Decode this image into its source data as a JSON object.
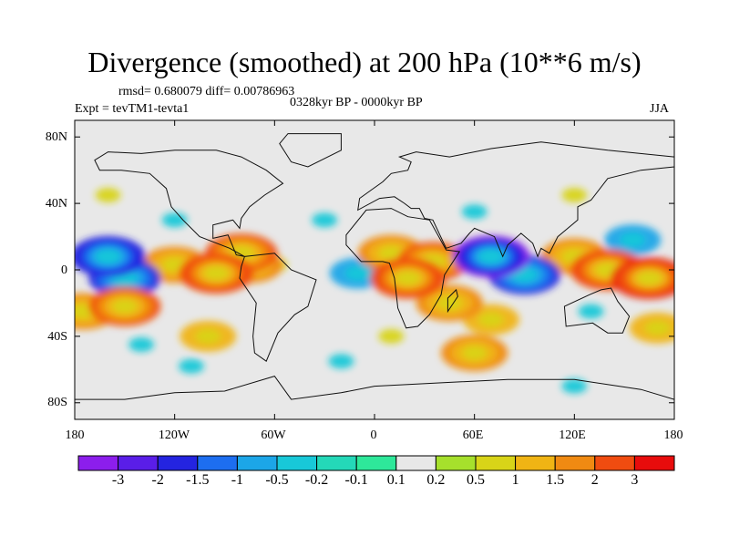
{
  "title": "Divergence (smoothed) at 200 hPa (10**6 m/s)",
  "stats": "rmsd= 0.680079  diff= 0.00786963",
  "experiment": "Expt = tevTM1-tevta1",
  "period": "0328kyr BP - 0000kyr BP",
  "season": "JJA",
  "y_ticks": [
    "80N",
    "40N",
    "0",
    "40S",
    "80S"
  ],
  "x_ticks": [
    "180",
    "120W",
    "60W",
    "0",
    "60E",
    "120E",
    "180"
  ],
  "colorbar": {
    "labels": [
      "-3",
      "-2",
      "-1.5",
      "-1",
      "-0.5",
      "-0.2",
      "-0.1",
      "0.1",
      "0.2",
      "0.5",
      "1",
      "1.5",
      "2",
      "3"
    ],
    "colors": [
      "#8c1eec",
      "#2424e0",
      "#1d6ef0",
      "#1ca6e8",
      "#18c8d8",
      "#24d8b8",
      "#2ee89a",
      "#e8e8e8",
      "#a6e02c",
      "#d8d418",
      "#f0b414",
      "#f08a12",
      "#f04c10",
      "#e80c0c"
    ]
  },
  "map_fields": {
    "units": "10**6 m/s",
    "features_deg": [
      {
        "lon": -160,
        "lat": 8,
        "value": -2.5
      },
      {
        "lon": -150,
        "lat": -5,
        "value": -2
      },
      {
        "lon": -175,
        "lat": -25,
        "value": 1.5
      },
      {
        "lon": -150,
        "lat": -22,
        "value": 2
      },
      {
        "lon": -120,
        "lat": 3,
        "value": 1.5
      },
      {
        "lon": -95,
        "lat": -2,
        "value": 2.5
      },
      {
        "lon": -80,
        "lat": 10,
        "value": 2
      },
      {
        "lon": -75,
        "lat": 3,
        "value": 1.5
      },
      {
        "lon": -60,
        "lat": 3,
        "value": 0.5
      },
      {
        "lon": -10,
        "lat": -2,
        "value": -1
      },
      {
        "lon": 10,
        "lat": 10,
        "value": 1.5
      },
      {
        "lon": 20,
        "lat": -5,
        "value": 2.5
      },
      {
        "lon": 35,
        "lat": 5,
        "value": 2
      },
      {
        "lon": 70,
        "lat": 8,
        "value": -3
      },
      {
        "lon": 90,
        "lat": -3,
        "value": -2
      },
      {
        "lon": 45,
        "lat": -20,
        "value": 1.5
      },
      {
        "lon": 70,
        "lat": -30,
        "value": 1
      },
      {
        "lon": 60,
        "lat": -50,
        "value": 1.5
      },
      {
        "lon": 120,
        "lat": 8,
        "value": 1.5
      },
      {
        "lon": 140,
        "lat": 0,
        "value": 2.5
      },
      {
        "lon": 165,
        "lat": -5,
        "value": 3
      },
      {
        "lon": 155,
        "lat": 18,
        "value": -1
      },
      {
        "lon": 130,
        "lat": -25,
        "value": -0.5
      },
      {
        "lon": 170,
        "lat": -35,
        "value": 1
      },
      {
        "lon": -120,
        "lat": 30,
        "value": -0.5
      },
      {
        "lon": -30,
        "lat": 30,
        "value": -0.5
      },
      {
        "lon": -100,
        "lat": -40,
        "value": 1
      },
      {
        "lon": -140,
        "lat": -45,
        "value": -0.5
      },
      {
        "lon": 10,
        "lat": -40,
        "value": 0.5
      },
      {
        "lon": 60,
        "lat": 35,
        "value": -0.5
      },
      {
        "lon": 120,
        "lat": 45,
        "value": 0.5
      },
      {
        "lon": -160,
        "lat": 45,
        "value": 0.5
      },
      {
        "lon": -20,
        "lat": -55,
        "value": -0.5
      },
      {
        "lon": -110,
        "lat": -58,
        "value": -0.5
      },
      {
        "lon": 120,
        "lat": -70,
        "value": -0.5
      }
    ],
    "continents_deg": [
      {
        "name": "north-america",
        "coords": [
          [
            -168,
            66
          ],
          [
            -160,
            71
          ],
          [
            -140,
            70
          ],
          [
            -120,
            72
          ],
          [
            -95,
            72
          ],
          [
            -80,
            68
          ],
          [
            -65,
            60
          ],
          [
            -55,
            52
          ],
          [
            -66,
            45
          ],
          [
            -75,
            38
          ],
          [
            -80,
            31
          ],
          [
            -81,
            25
          ],
          [
            -85,
            30
          ],
          [
            -97,
            27
          ],
          [
            -97,
            19
          ],
          [
            -88,
            21
          ],
          [
            -83,
            9
          ],
          [
            -78,
            8
          ],
          [
            -87,
            13
          ],
          [
            -105,
            20
          ],
          [
            -115,
            30
          ],
          [
            -122,
            38
          ],
          [
            -125,
            49
          ],
          [
            -135,
            58
          ],
          [
            -152,
            60
          ],
          [
            -165,
            60
          ]
        ]
      },
      {
        "name": "greenland",
        "coords": [
          [
            -52,
            82
          ],
          [
            -20,
            82
          ],
          [
            -20,
            72
          ],
          [
            -40,
            62
          ],
          [
            -50,
            65
          ],
          [
            -57,
            76
          ]
        ]
      },
      {
        "name": "south-america",
        "coords": [
          [
            -78,
            8
          ],
          [
            -60,
            10
          ],
          [
            -50,
            0
          ],
          [
            -35,
            -6
          ],
          [
            -40,
            -22
          ],
          [
            -48,
            -27
          ],
          [
            -58,
            -38
          ],
          [
            -65,
            -55
          ],
          [
            -72,
            -50
          ],
          [
            -73,
            -40
          ],
          [
            -71,
            -20
          ],
          [
            -81,
            -5
          ],
          [
            -80,
            2
          ]
        ]
      },
      {
        "name": "eurasia",
        "coords": [
          [
            -10,
            36
          ],
          [
            -9,
            43
          ],
          [
            -2,
            48
          ],
          [
            5,
            53
          ],
          [
            10,
            58
          ],
          [
            20,
            60
          ],
          [
            22,
            65
          ],
          [
            15,
            68
          ],
          [
            25,
            71
          ],
          [
            45,
            68
          ],
          [
            70,
            73
          ],
          [
            100,
            77
          ],
          [
            140,
            72
          ],
          [
            180,
            68
          ],
          [
            180,
            62
          ],
          [
            160,
            60
          ],
          [
            140,
            55
          ],
          [
            130,
            42
          ],
          [
            122,
            38
          ],
          [
            122,
            30
          ],
          [
            110,
            20
          ],
          [
            105,
            10
          ],
          [
            100,
            13
          ],
          [
            98,
            8
          ],
          [
            95,
            16
          ],
          [
            88,
            22
          ],
          [
            80,
            15
          ],
          [
            77,
            8
          ],
          [
            72,
            20
          ],
          [
            60,
            25
          ],
          [
            57,
            22
          ],
          [
            52,
            16
          ],
          [
            43,
            13
          ],
          [
            35,
            30
          ],
          [
            30,
            31
          ],
          [
            27,
            37
          ],
          [
            22,
            37
          ],
          [
            18,
            40
          ],
          [
            12,
            44
          ],
          [
            3,
            43
          ]
        ]
      },
      {
        "name": "africa",
        "coords": [
          [
            -17,
            21
          ],
          [
            -17,
            15
          ],
          [
            -8,
            5
          ],
          [
            5,
            5
          ],
          [
            9,
            4
          ],
          [
            12,
            -5
          ],
          [
            14,
            -23
          ],
          [
            19,
            -35
          ],
          [
            26,
            -34
          ],
          [
            33,
            -27
          ],
          [
            40,
            -15
          ],
          [
            42,
            -3
          ],
          [
            51,
            11
          ],
          [
            43,
            12
          ],
          [
            33,
            30
          ],
          [
            20,
            32
          ],
          [
            10,
            37
          ],
          [
            -5,
            36
          ]
        ]
      },
      {
        "name": "australia",
        "coords": [
          [
            114,
            -22
          ],
          [
            129,
            -15
          ],
          [
            136,
            -12
          ],
          [
            142,
            -11
          ],
          [
            146,
            -19
          ],
          [
            153,
            -28
          ],
          [
            149,
            -38
          ],
          [
            140,
            -38
          ],
          [
            131,
            -32
          ],
          [
            115,
            -34
          ]
        ]
      },
      {
        "name": "antarctica",
        "coords": [
          [
            -180,
            -78
          ],
          [
            -150,
            -78
          ],
          [
            -120,
            -74
          ],
          [
            -90,
            -73
          ],
          [
            -60,
            -64
          ],
          [
            -50,
            -78
          ],
          [
            -20,
            -74
          ],
          [
            0,
            -70
          ],
          [
            40,
            -68
          ],
          [
            80,
            -66
          ],
          [
            120,
            -66
          ],
          [
            160,
            -72
          ],
          [
            180,
            -78
          ],
          [
            180,
            -90
          ],
          [
            -180,
            -90
          ]
        ]
      },
      {
        "name": "madagascar",
        "coords": [
          [
            44,
            -25
          ],
          [
            50,
            -16
          ],
          [
            49,
            -12
          ],
          [
            44,
            -17
          ]
        ]
      }
    ]
  }
}
